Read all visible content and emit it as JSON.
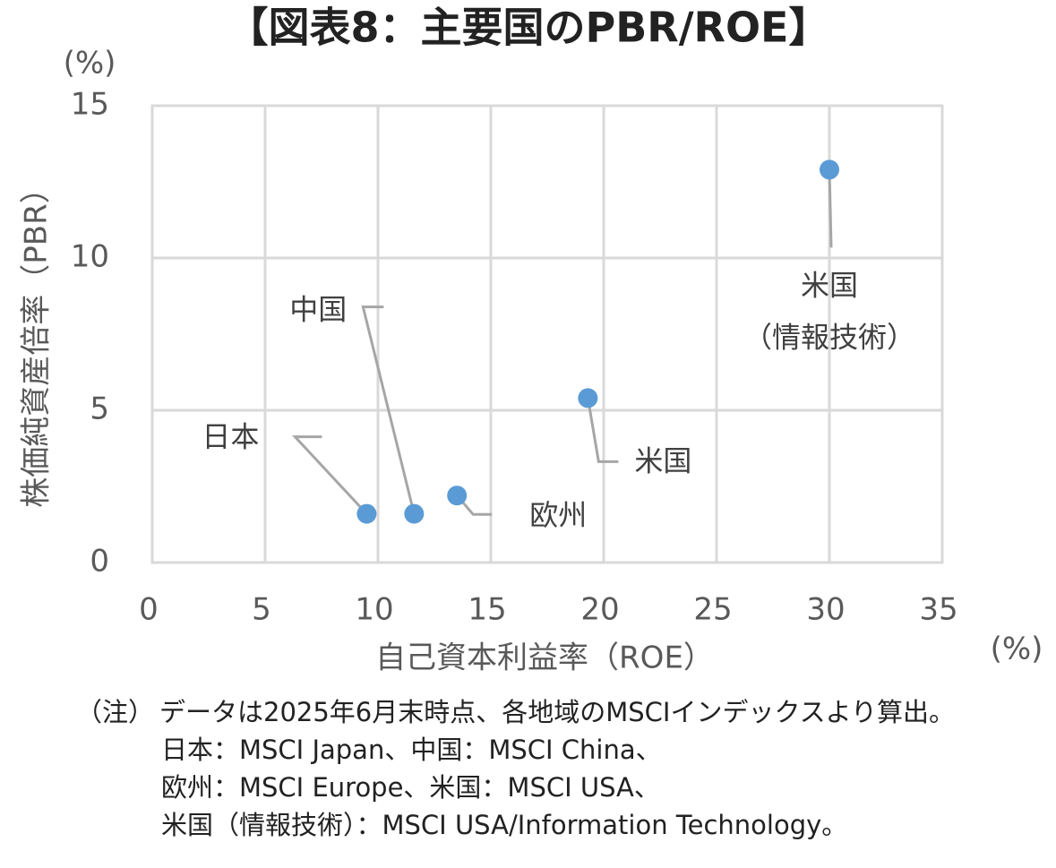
{
  "chart_data": {
    "type": "scatter",
    "title": "【図表8：主要国のPBR/ROE】",
    "x_label": "自己資本利益率（ROE）",
    "y_label": "株価純資産倍率（PBR）",
    "x_unit": "(%)",
    "y_unit": "(%)",
    "labels": [
      [
        "日本"
      ],
      [
        "中国"
      ],
      [
        "欧州"
      ],
      [
        "米国"
      ],
      [
        "米国",
        "（情報技術）"
      ]
    ],
    "x": [
      9.5,
      11.6,
      13.5,
      19.3,
      30.0
    ],
    "y": [
      1.6,
      1.6,
      2.2,
      5.4,
      12.9
    ],
    "color": "#5b9bd5",
    "xlim": [
      0,
      35
    ],
    "xticks": [
      0,
      5,
      10,
      15,
      20,
      25,
      30,
      35
    ],
    "ylim": [
      0,
      15
    ],
    "yticks": [
      0,
      5,
      10,
      15
    ],
    "grid": true
  },
  "notes": {
    "prefix": "（注）",
    "lines": [
      "データは2025年6月末時点、各地域のMSCIインデックスより算出。",
      "日本：MSCI Japan、中国：MSCI China、",
      "欧州：MSCI Europe、米国：MSCI USA、",
      "米国（情報技術）：MSCI USA/Information Technology。"
    ]
  }
}
